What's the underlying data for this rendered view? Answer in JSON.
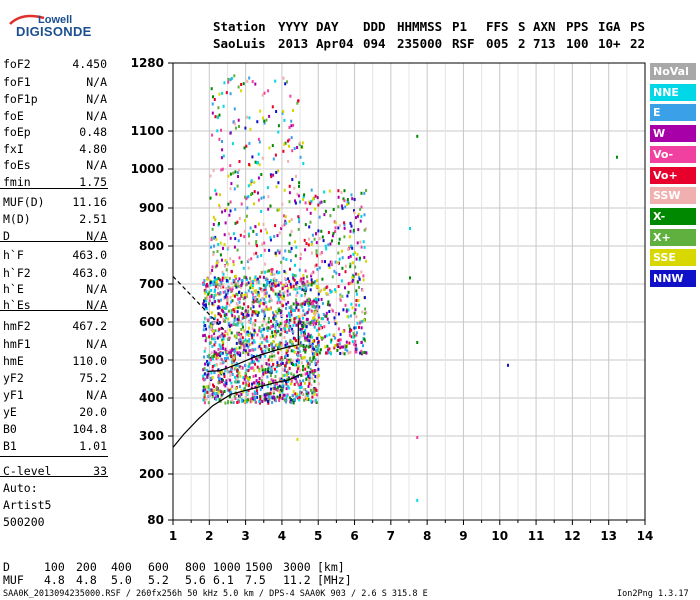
{
  "logo": {
    "top": "Lowell",
    "main": "DIGISONDE"
  },
  "header": {
    "row1": [
      "Station",
      "YYYY",
      "DAY",
      "DDD",
      "HHMMSS",
      "P1",
      "FFS",
      "S",
      "AXN",
      "PPS",
      "IGA",
      "PS"
    ],
    "row2": [
      "SaoLuis",
      "2013",
      "Apr04",
      "094",
      "235000",
      "RSF",
      "005",
      "2",
      "713",
      "100",
      "10+",
      "22"
    ]
  },
  "params": [
    {
      "name": "foF2",
      "value": "4.450"
    },
    {
      "name": "foF1",
      "value": "N/A"
    },
    {
      "name": "foF1p",
      "value": "N/A"
    },
    {
      "name": "foE",
      "value": "N/A"
    },
    {
      "name": "foEp",
      "value": "0.48"
    },
    {
      "name": "fxI",
      "value": "4.80"
    },
    {
      "name": "foEs",
      "value": "N/A"
    },
    {
      "name": "fmin",
      "value": "1.75"
    },
    {
      "name": "MUF(D)",
      "value": "11.16"
    },
    {
      "name": "M(D)",
      "value": "2.51"
    },
    {
      "name": "D",
      "value": "N/A"
    },
    {
      "name": "h`F",
      "value": "463.0"
    },
    {
      "name": "h`F2",
      "value": "463.0"
    },
    {
      "name": "h`E",
      "value": "N/A"
    },
    {
      "name": "h`Es",
      "value": "N/A"
    },
    {
      "name": "hmF2",
      "value": "467.2"
    },
    {
      "name": "hmF1",
      "value": "N/A"
    },
    {
      "name": "hmE",
      "value": "110.0"
    },
    {
      "name": "yF2",
      "value": "75.2"
    },
    {
      "name": "yF1",
      "value": "N/A"
    },
    {
      "name": "yE",
      "value": "20.0"
    },
    {
      "name": "B0",
      "value": "104.8"
    },
    {
      "name": "B1",
      "value": "1.01"
    },
    {
      "name": "C-level",
      "value": "33"
    }
  ],
  "notes": [
    "Auto:",
    "Artist5",
    "500200"
  ],
  "legend": [
    {
      "label": "NoVal",
      "color": "#a8a8a8"
    },
    {
      "label": "NNE",
      "color": "#00d8e8"
    },
    {
      "label": "E",
      "color": "#3aa0e8"
    },
    {
      "label": "W",
      "color": "#a800a8"
    },
    {
      "label": "Vo-",
      "color": "#f040a0"
    },
    {
      "label": "Vo+",
      "color": "#e8002c"
    },
    {
      "label": "SSW",
      "color": "#f0b0b0"
    },
    {
      "label": "X-",
      "color": "#008800"
    },
    {
      "label": "X+",
      "color": "#60b040"
    },
    {
      "label": "SSE",
      "color": "#d8d800"
    },
    {
      "label": "NNW",
      "color": "#1010c8"
    }
  ],
  "distance_table": {
    "row1_label": "D",
    "row1_values": [
      "100",
      "200",
      "400",
      "600",
      "800",
      "1000",
      "1500",
      "3000"
    ],
    "row1_unit": "[km]",
    "row2_label": "MUF",
    "row2_values": [
      "4.8",
      "4.8",
      "5.0",
      "5.2",
      "5.6",
      "6.1",
      "7.5",
      "11.2"
    ],
    "row2_unit": "[MHz]"
  },
  "footer": {
    "left": "SAA0K_2013094235000.RSF / 260fx256h 50 kHz 5.0 km / DPS-4 SAA0K 903 / 2.6 S 315.8 E",
    "right": "Ion2Png 1.3.17"
  },
  "chart_data": {
    "type": "scatter",
    "title": "",
    "xlabel": "",
    "ylabel": "",
    "xlim": [
      1,
      14
    ],
    "ylim": [
      80,
      1280
    ],
    "x_ticks": [
      1,
      2,
      3,
      4,
      5,
      6,
      7,
      8,
      9,
      10,
      11,
      12,
      13,
      14
    ],
    "y_ticks": [
      80,
      200,
      300,
      400,
      500,
      600,
      700,
      800,
      900,
      1000,
      1100,
      1280
    ],
    "y_scale": "nonlinear",
    "grid": true,
    "legend_position": "right",
    "traces": [
      {
        "name": "",
        "style": "solid",
        "points": [
          [
            1,
            270
          ],
          [
            1.3,
            305
          ],
          [
            1.7,
            345
          ],
          [
            2.1,
            380
          ],
          [
            2.6,
            410
          ],
          [
            3.2,
            425
          ],
          [
            3.8,
            440
          ],
          [
            4.2,
            448
          ],
          [
            4.5,
            462
          ]
        ]
      },
      {
        "name": "",
        "style": "solid",
        "points": [
          [
            1.95,
            470
          ],
          [
            2.3,
            472
          ],
          [
            2.8,
            490
          ],
          [
            3.3,
            510
          ],
          [
            3.8,
            525
          ],
          [
            4.2,
            535
          ],
          [
            4.45,
            540
          ],
          [
            4.45,
            600
          ]
        ]
      },
      {
        "name": "",
        "style": "dashed",
        "points": [
          [
            1,
            720
          ],
          [
            1.5,
            670
          ],
          [
            2,
            620
          ],
          [
            2.4,
            580
          ]
        ]
      }
    ],
    "scatter_regions": [
      {
        "x": [
          1.8,
          5.0
        ],
        "y": [
          390,
          720
        ],
        "density": "dense"
      },
      {
        "x": [
          2.0,
          4.6
        ],
        "y": [
          700,
          1250
        ],
        "density": "sparse"
      },
      {
        "x": [
          4.6,
          6.3
        ],
        "y": [
          520,
          950
        ],
        "density": "sparse"
      }
    ],
    "isolated_points": [
      {
        "x": 7.7,
        "y": 1090,
        "direction": "X-"
      },
      {
        "x": 7.5,
        "y": 850,
        "direction": "NNE"
      },
      {
        "x": 7.5,
        "y": 720,
        "direction": "X-"
      },
      {
        "x": 7.7,
        "y": 550,
        "direction": "X-"
      },
      {
        "x": 7.7,
        "y": 300,
        "direction": "Vo-"
      },
      {
        "x": 7.7,
        "y": 135,
        "direction": "NNE"
      },
      {
        "x": 10.2,
        "y": 490,
        "direction": "NNW"
      },
      {
        "x": 13.2,
        "y": 1035,
        "direction": "X-"
      },
      {
        "x": 4.4,
        "y": 295,
        "direction": "SSE"
      }
    ]
  }
}
